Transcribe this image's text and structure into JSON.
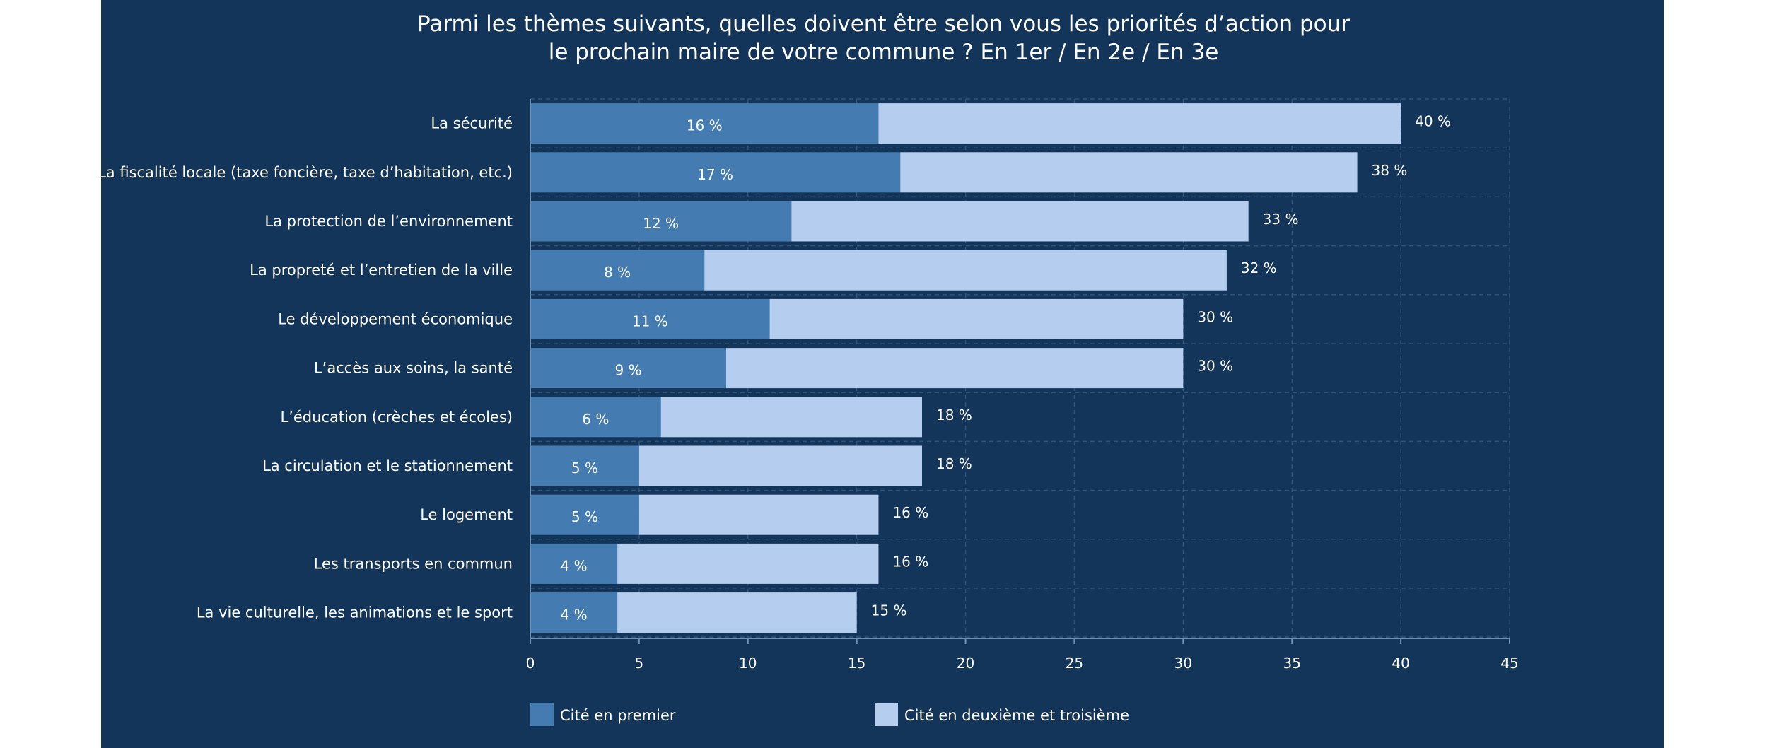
{
  "chart_data": {
    "type": "bar",
    "orientation": "horizontal",
    "stacked": true,
    "title": "Parmi les thèmes suivants, quelles doivent être selon vous les priorités d’action pour le prochain maire de votre commune ? En 1er / En 2e / En 3e",
    "title_lines": [
      "Parmi les thèmes suivants, quelles doivent être selon vous les priorités d’action pour",
      "le prochain maire de votre commune ? En 1er / En 2e / En 3e"
    ],
    "categories": [
      "La sécurité",
      "La fiscalité locale (taxe foncière, taxe d’habitation, etc.)",
      "La protection de l’environnement",
      "La propreté et l’entretien de la ville",
      "Le développement économique",
      "L’accès aux soins, la santé",
      "L’éducation (crèches et écoles)",
      "La circulation et le stationnement",
      "Le logement",
      "Les transports en commun",
      "La vie culturelle, les animations et le sport"
    ],
    "series": [
      {
        "name": "Cité en premier",
        "values": [
          16,
          17,
          12,
          8,
          11,
          9,
          6,
          5,
          5,
          4,
          4
        ],
        "color": "#447cb1"
      },
      {
        "name": "Cité en deuxième et troisième",
        "values": [
          24,
          21,
          21,
          24,
          19,
          21,
          12,
          13,
          11,
          12,
          11
        ],
        "color": "#b5cdee"
      }
    ],
    "inner_labels": [
      "16 %",
      "17 %",
      "12 %",
      "8 %",
      "11 %",
      "9 %",
      "6 %",
      "5 %",
      "5 %",
      "4 %",
      "4 %"
    ],
    "total_labels": [
      "40 %",
      "38 %",
      "33 %",
      "32 %",
      "30 %",
      "30 %",
      "18 %",
      "18 %",
      "16 %",
      "16 %",
      "15 %"
    ],
    "xlim": [
      0,
      45
    ],
    "xticks": [
      0,
      5,
      10,
      15,
      20,
      25,
      30,
      35,
      40,
      45
    ],
    "grid": true,
    "legend_position": "bottom-left",
    "colors": {
      "background": "#14355a",
      "grid": "#2e5278",
      "text": "#ffffff"
    }
  }
}
